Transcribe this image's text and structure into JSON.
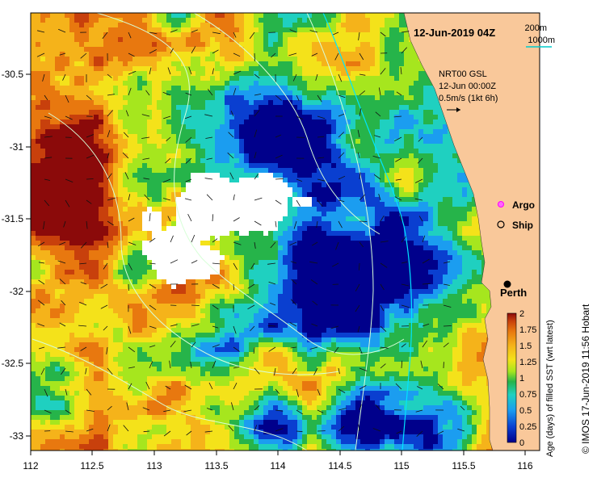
{
  "title": "12-Jun-2019 04Z",
  "contour_legend": {
    "shallow": "200m",
    "deep": "1000m"
  },
  "current_info": {
    "line1": "NRT00 GSL",
    "line2": "12-Jun 00:00Z",
    "scale": "0.5m/s (1kt 6h)"
  },
  "markers": {
    "argo": "Argo",
    "ship": "Ship"
  },
  "city": "Perth",
  "colorbar": {
    "title": "Age (days) of filled SST (wrt latest)",
    "ticks": [
      "2",
      "1.75",
      "1.5",
      "1.25",
      "1",
      "0.75",
      "0.5",
      "0.25",
      "0"
    ]
  },
  "axes": {
    "x_ticks": [
      "112",
      "112.5",
      "113",
      "113.5",
      "114",
      "114.5",
      "115",
      "115.5",
      "116"
    ],
    "y_ticks": [
      "-30.5",
      "-31",
      "-31.5",
      "-32",
      "-32.5",
      "-33"
    ]
  },
  "credit": "© IMOS 17-Jun-2019 11:56 Hobart",
  "colors": {
    "land": "#f9c89a",
    "age_scale": [
      "#00008b",
      "#0a3fd0",
      "#1b9df0",
      "#1fd0c0",
      "#26b44a",
      "#a6e61e",
      "#f4e21a",
      "#f5b31a",
      "#e8780f",
      "#c8400c",
      "#8b0a0a"
    ],
    "contour_shallow": "#00e5ff",
    "contour_deep": "#d8ffd8"
  }
}
